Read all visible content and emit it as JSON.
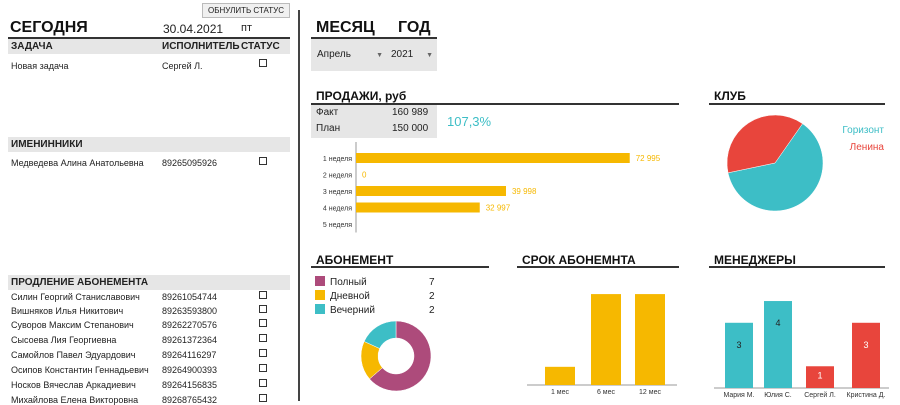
{
  "today": {
    "title": "СЕГОДНЯ",
    "date": "30.04.2021",
    "weekday": "пт",
    "reset_button": "ОБНУЛИТЬ СТАТУС",
    "col_task": "ЗАДАЧА",
    "col_assignee": "ИСПОЛНИТЕЛЬ",
    "col_status": "СТАТУС",
    "task_name": "Новая задача",
    "task_assignee": "Сергей Л."
  },
  "birthdays": {
    "title": "ИМЕНИННИКИ",
    "name": "Медведева Алина Анатольевна",
    "phone": "89265095926"
  },
  "renewal": {
    "title": "ПРОДЛЕНИЕ АБОНЕМЕНТА",
    "rows": [
      {
        "name": "Силин Георгий Станиславович",
        "phone": "89261054744"
      },
      {
        "name": "Вишняков Илья Никитович",
        "phone": "89263593800"
      },
      {
        "name": "Суворов Максим Степанович",
        "phone": "89262270576"
      },
      {
        "name": "Сысоева Лия Георгиевна",
        "phone": "89261372364"
      },
      {
        "name": "Самойлов Павел Эдуардович",
        "phone": "89264116297"
      },
      {
        "name": "Осипов Константин Геннадьевич",
        "phone": "89264900393"
      },
      {
        "name": "Носков Вячеслав Аркадиевич",
        "phone": "89264156835"
      },
      {
        "name": "Михайлова Елена Викторовна",
        "phone": "89268765432"
      }
    ]
  },
  "filters": {
    "month_label": "МЕСЯЦ",
    "year_label": "ГОД",
    "month_value": "Апрель",
    "year_value": "2021"
  },
  "sales": {
    "title": "ПРОДАЖИ, руб",
    "fact_label": "Факт",
    "fact_value": "160 989",
    "plan_label": "План",
    "plan_value": "150 000",
    "percent": "107,3%"
  },
  "colors": {
    "yellow": "#f6b800",
    "teal": "#3dbec6",
    "red": "#e8453c",
    "plum": "#ad4b7b"
  },
  "chart_data": [
    {
      "type": "bar",
      "orientation": "horizontal",
      "categories": [
        "1 неделя",
        "2 неделя",
        "3 неделя",
        "4 неделя",
        "5 неделя"
      ],
      "values": [
        72995,
        0,
        39998,
        32997,
        null
      ],
      "labels": [
        "72 995",
        "0",
        "39 998",
        "32 997",
        ""
      ],
      "xlim": [
        0,
        80000
      ]
    },
    {
      "type": "pie",
      "title": "КЛУБ",
      "labels": [
        "Горизонт",
        "Ленина"
      ],
      "values": [
        62,
        38
      ],
      "colors": [
        "#3dbec6",
        "#e8453c"
      ]
    },
    {
      "type": "pie",
      "title": "АБОНЕМЕНТ",
      "labels": [
        "Полный",
        "Дневной",
        "Вечерний"
      ],
      "values": [
        7,
        2,
        2
      ],
      "colors": [
        "#ad4b7b",
        "#f6b800",
        "#3dbec6"
      ],
      "legend": "top-left"
    },
    {
      "type": "bar",
      "title": "СРОК АБОНЕМНТА",
      "categories": [
        "1 мес",
        "6 мес",
        "12 мес"
      ],
      "values": [
        1,
        5,
        5
      ],
      "ylim": [
        0,
        5.5
      ]
    },
    {
      "type": "bar",
      "title": "МЕНЕДЖЕРЫ",
      "categories": [
        "Мария М.",
        "Юлия С.",
        "Сергей Л.",
        "Кристина Д."
      ],
      "values": [
        3,
        4,
        1,
        3
      ],
      "labels": [
        "3",
        "4",
        "1",
        "3"
      ],
      "colors": [
        "#3dbec6",
        "#3dbec6",
        "#e8453c",
        "#e8453c"
      ],
      "ylim": [
        0,
        4.6
      ]
    }
  ]
}
